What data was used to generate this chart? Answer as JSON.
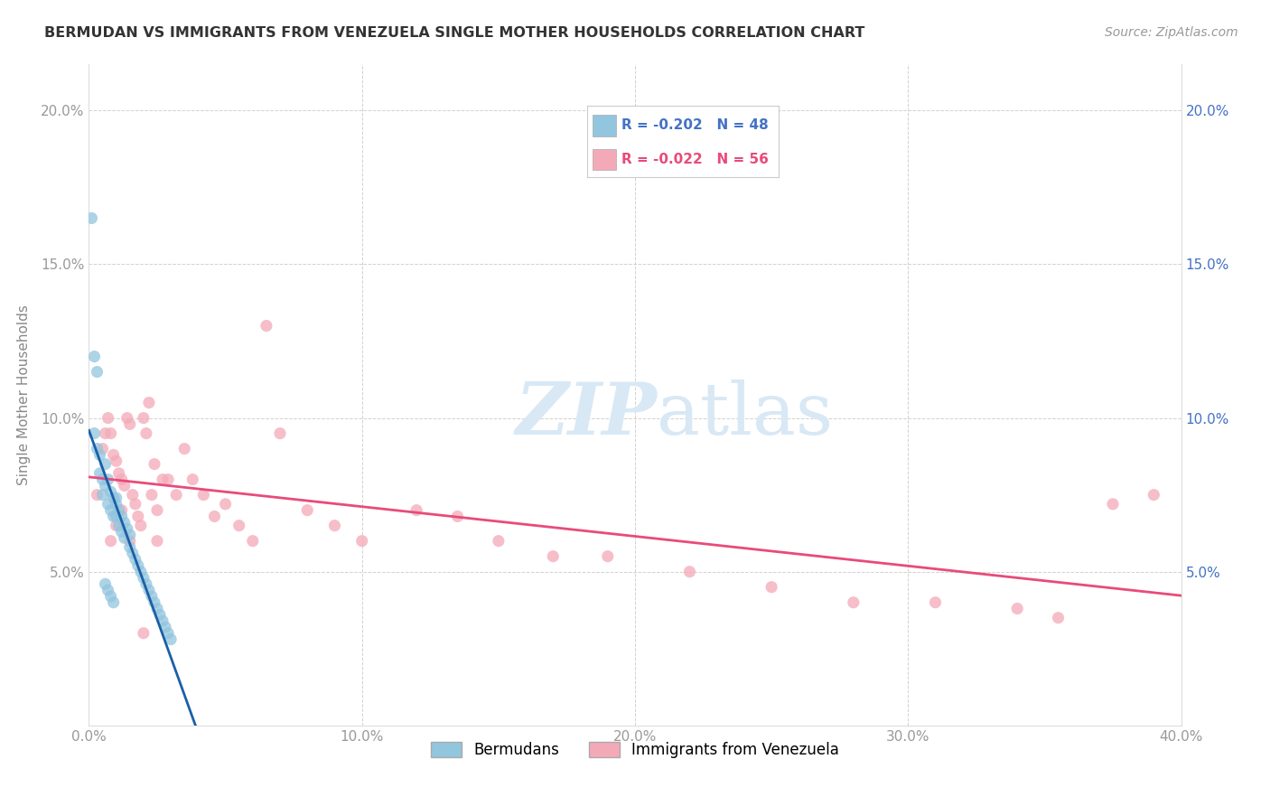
{
  "title": "BERMUDAN VS IMMIGRANTS FROM VENEZUELA SINGLE MOTHER HOUSEHOLDS CORRELATION CHART",
  "source": "Source: ZipAtlas.com",
  "ylabel": "Single Mother Households",
  "xlim": [
    0.0,
    0.4
  ],
  "ylim": [
    0.0,
    0.215
  ],
  "xtick_labels": [
    "0.0%",
    "10.0%",
    "20.0%",
    "30.0%",
    "40.0%"
  ],
  "xtick_values": [
    0.0,
    0.1,
    0.2,
    0.3,
    0.4
  ],
  "ytick_labels": [
    "5.0%",
    "10.0%",
    "15.0%",
    "20.0%"
  ],
  "ytick_values": [
    0.05,
    0.1,
    0.15,
    0.2
  ],
  "legend_R1": "R = -0.202",
  "legend_N1": "N = 48",
  "legend_R2": "R = -0.022",
  "legend_N2": "N = 56",
  "color_bermuda": "#92c5de",
  "color_venezuela": "#f4a9b8",
  "color_line_bermuda": "#1a5fa8",
  "color_line_venezuela": "#e84b7a",
  "color_line_dashed": "#aaccee",
  "watermark_color": "#d8e8f5",
  "background_color": "#ffffff",
  "grid_color": "#cccccc",
  "right_axis_color": "#4472c4",
  "bermuda_scatter_x": [
    0.001,
    0.002,
    0.002,
    0.003,
    0.003,
    0.004,
    0.004,
    0.005,
    0.005,
    0.006,
    0.006,
    0.007,
    0.007,
    0.008,
    0.008,
    0.009,
    0.009,
    0.01,
    0.01,
    0.01,
    0.011,
    0.011,
    0.012,
    0.012,
    0.013,
    0.013,
    0.014,
    0.015,
    0.015,
    0.016,
    0.017,
    0.018,
    0.019,
    0.02,
    0.021,
    0.022,
    0.023,
    0.024,
    0.025,
    0.026,
    0.027,
    0.028,
    0.029,
    0.03,
    0.006,
    0.007,
    0.008,
    0.009
  ],
  "bermuda_scatter_y": [
    0.165,
    0.12,
    0.095,
    0.115,
    0.09,
    0.088,
    0.082,
    0.08,
    0.075,
    0.085,
    0.078,
    0.08,
    0.072,
    0.076,
    0.07,
    0.074,
    0.068,
    0.074,
    0.072,
    0.068,
    0.07,
    0.065,
    0.068,
    0.063,
    0.066,
    0.061,
    0.064,
    0.062,
    0.058,
    0.056,
    0.054,
    0.052,
    0.05,
    0.048,
    0.046,
    0.044,
    0.042,
    0.04,
    0.038,
    0.036,
    0.034,
    0.032,
    0.03,
    0.028,
    0.046,
    0.044,
    0.042,
    0.04
  ],
  "venezuela_scatter_x": [
    0.003,
    0.005,
    0.006,
    0.007,
    0.008,
    0.009,
    0.01,
    0.011,
    0.012,
    0.013,
    0.014,
    0.015,
    0.016,
    0.017,
    0.018,
    0.019,
    0.02,
    0.021,
    0.022,
    0.023,
    0.024,
    0.025,
    0.027,
    0.029,
    0.032,
    0.035,
    0.038,
    0.042,
    0.046,
    0.05,
    0.055,
    0.06,
    0.065,
    0.07,
    0.08,
    0.09,
    0.1,
    0.12,
    0.135,
    0.15,
    0.17,
    0.19,
    0.22,
    0.25,
    0.28,
    0.31,
    0.34,
    0.355,
    0.375,
    0.39,
    0.008,
    0.01,
    0.012,
    0.015,
    0.02,
    0.025
  ],
  "venezuela_scatter_y": [
    0.075,
    0.09,
    0.095,
    0.1,
    0.095,
    0.088,
    0.086,
    0.082,
    0.08,
    0.078,
    0.1,
    0.098,
    0.075,
    0.072,
    0.068,
    0.065,
    0.1,
    0.095,
    0.105,
    0.075,
    0.085,
    0.07,
    0.08,
    0.08,
    0.075,
    0.09,
    0.08,
    0.075,
    0.068,
    0.072,
    0.065,
    0.06,
    0.13,
    0.095,
    0.07,
    0.065,
    0.06,
    0.07,
    0.068,
    0.06,
    0.055,
    0.055,
    0.05,
    0.045,
    0.04,
    0.04,
    0.038,
    0.035,
    0.072,
    0.075,
    0.06,
    0.065,
    0.07,
    0.06,
    0.03,
    0.06
  ]
}
